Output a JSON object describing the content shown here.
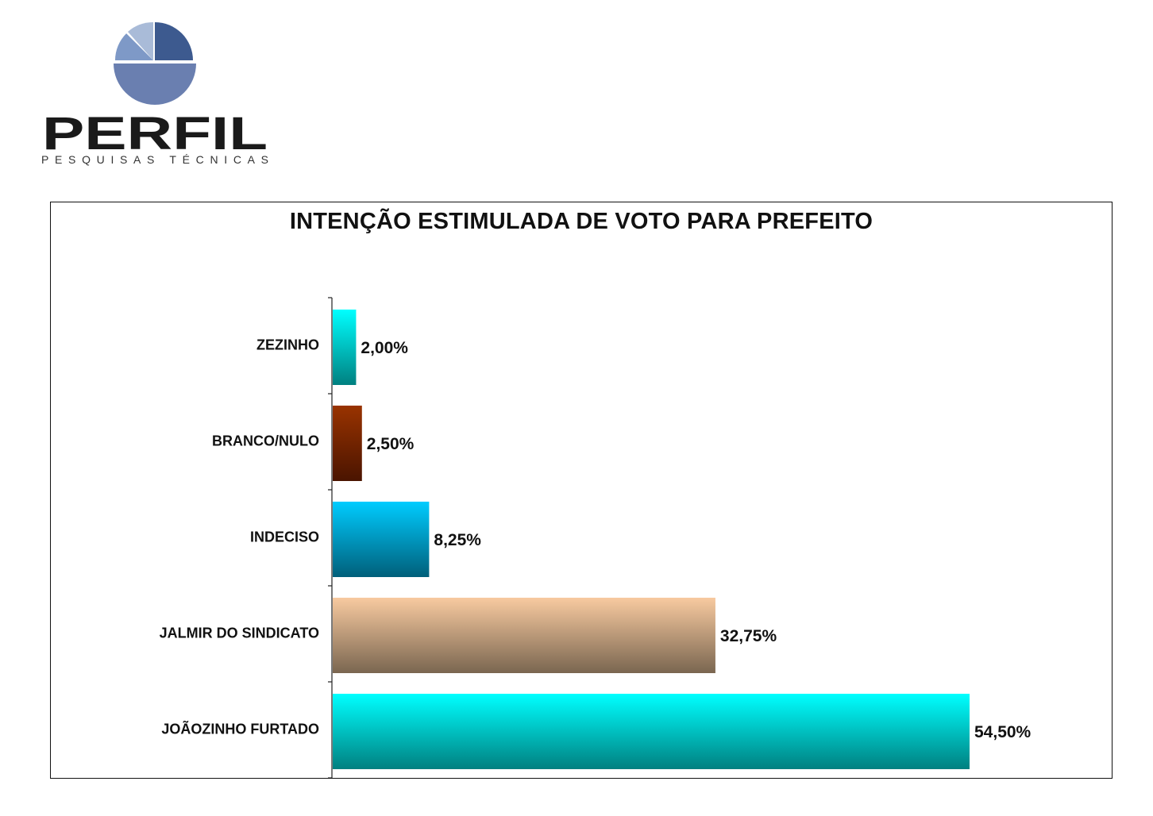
{
  "logo": {
    "name": "PERFIL",
    "tagline": "PESQUISAS TÉCNICAS",
    "colors": {
      "dark": "#3d5a8f",
      "mid": "#6a7fb0",
      "light": "#7e99c7",
      "pale": "#a9bbd8",
      "text": "#1a1a1a"
    }
  },
  "chart_data": {
    "type": "bar",
    "orientation": "horizontal",
    "title": "INTENÇÃO ESTIMULADA DE VOTO PARA PREFEITO",
    "categories": [
      "ZEZINHO",
      "BRANCO/NULO",
      "INDECISO",
      "JALMIR DO SINDICATO",
      "JOÃOZINHO FURTADO"
    ],
    "values": [
      2.0,
      2.5,
      8.25,
      32.75,
      54.5
    ],
    "value_labels": [
      "2,00%",
      "2,50%",
      "8,25%",
      "32,75%",
      "54,50%"
    ],
    "xlim": [
      0,
      60
    ],
    "grid": false,
    "legend": "none",
    "bar_colors": [
      {
        "top": "#00ffff",
        "bottom": "#008080"
      },
      {
        "top": "#993300",
        "bottom": "#4a1400"
      },
      {
        "top": "#00ccff",
        "bottom": "#005f7a"
      },
      {
        "top": "#f8caa0",
        "bottom": "#7a6650"
      },
      {
        "top": "#00ffff",
        "bottom": "#008080"
      }
    ]
  }
}
